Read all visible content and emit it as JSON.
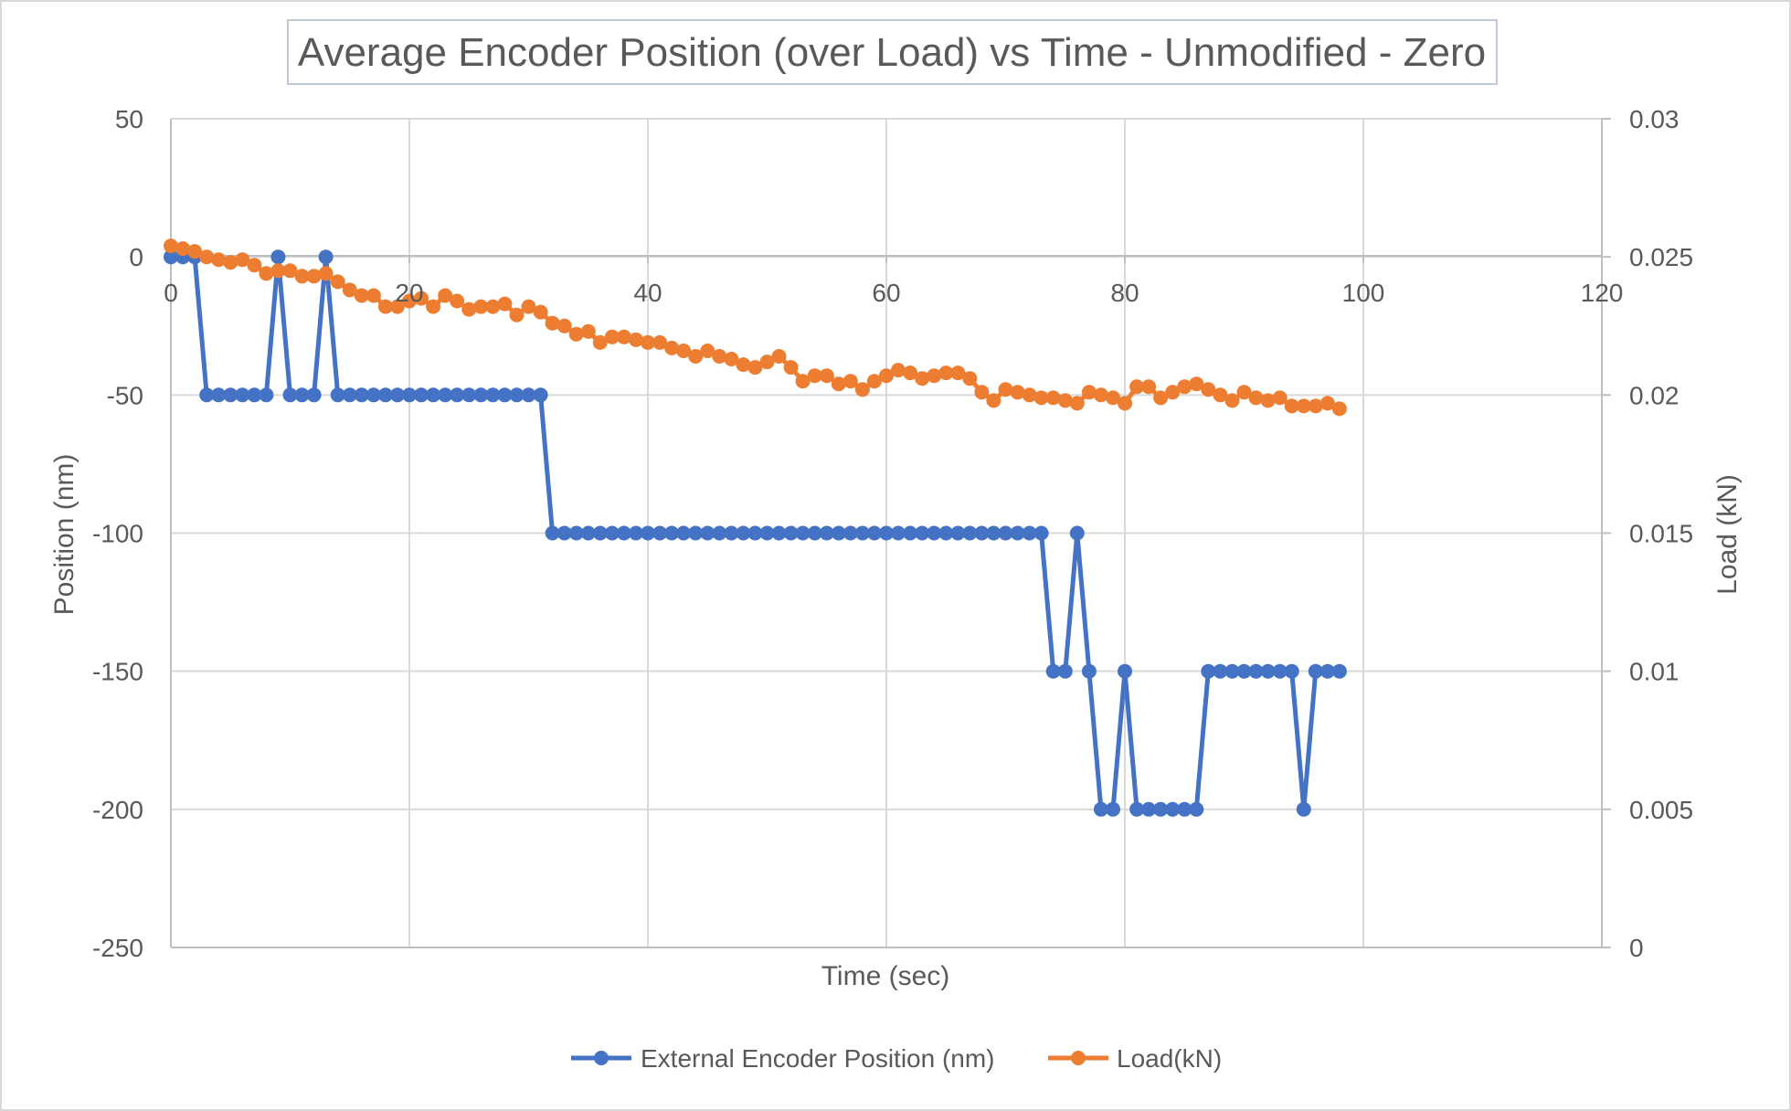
{
  "chart_data": {
    "type": "line",
    "title": "Average Encoder Position (over Load) vs Time - Unmodified - Zero",
    "xlabel": "Time (sec)",
    "ylabel": "Position (nm)",
    "y2label": "Load (kN)",
    "xlim": [
      0,
      120
    ],
    "ylim": [
      -250,
      50
    ],
    "y2lim": [
      0,
      0.03
    ],
    "x_ticks": [
      "0",
      "20",
      "40",
      "60",
      "80",
      "100",
      "120"
    ],
    "y_ticks": [
      "50",
      "0",
      "-50",
      "-100",
      "-150",
      "-200",
      "-250"
    ],
    "y2_ticks": [
      "0.03",
      "0.025",
      "0.02",
      "0.015",
      "0.01",
      "0.005",
      "0"
    ],
    "grid": true,
    "legend_position": "bottom",
    "series": [
      {
        "name": "External Encoder Position (nm)",
        "axis": "left",
        "color": "#4472C4",
        "x": [
          0,
          1,
          2,
          3,
          4,
          5,
          6,
          7,
          8,
          9,
          10,
          11,
          12,
          13,
          14,
          15,
          16,
          17,
          18,
          19,
          20,
          21,
          22,
          23,
          24,
          25,
          26,
          27,
          28,
          29,
          30,
          31,
          32,
          33,
          34,
          35,
          36,
          37,
          38,
          39,
          40,
          41,
          42,
          43,
          44,
          45,
          46,
          47,
          48,
          49,
          50,
          51,
          52,
          53,
          54,
          55,
          56,
          57,
          58,
          59,
          60,
          61,
          62,
          63,
          64,
          65,
          66,
          67,
          68,
          69,
          70,
          71,
          72,
          73,
          74,
          75,
          76,
          77,
          78,
          79,
          80,
          81,
          82,
          83,
          84,
          85,
          86,
          87,
          88,
          89,
          90,
          91,
          92,
          93,
          94,
          95,
          96,
          97,
          98
        ],
        "values": [
          0,
          0,
          0,
          -50,
          -50,
          -50,
          -50,
          -50,
          -50,
          0,
          -50,
          -50,
          -50,
          0,
          -50,
          -50,
          -50,
          -50,
          -50,
          -50,
          -50,
          -50,
          -50,
          -50,
          -50,
          -50,
          -50,
          -50,
          -50,
          -50,
          -50,
          -50,
          -100,
          -100,
          -100,
          -100,
          -100,
          -100,
          -100,
          -100,
          -100,
          -100,
          -100,
          -100,
          -100,
          -100,
          -100,
          -100,
          -100,
          -100,
          -100,
          -100,
          -100,
          -100,
          -100,
          -100,
          -100,
          -100,
          -100,
          -100,
          -100,
          -100,
          -100,
          -100,
          -100,
          -100,
          -100,
          -100,
          -100,
          -100,
          -100,
          -100,
          -100,
          -100,
          -150,
          -150,
          -100,
          -150,
          -200,
          -200,
          -150,
          -200,
          -200,
          -200,
          -200,
          -200,
          -200,
          -150,
          -150,
          -150,
          -150,
          -150,
          -150,
          -150,
          -150,
          -200,
          -150,
          -150,
          -150
        ]
      },
      {
        "name": "Load(kN)",
        "axis": "right",
        "color": "#ED7D31",
        "x": [
          0,
          1,
          2,
          3,
          4,
          5,
          6,
          7,
          8,
          9,
          10,
          11,
          12,
          13,
          14,
          15,
          16,
          17,
          18,
          19,
          20,
          21,
          22,
          23,
          24,
          25,
          26,
          27,
          28,
          29,
          30,
          31,
          32,
          33,
          34,
          35,
          36,
          37,
          38,
          39,
          40,
          41,
          42,
          43,
          44,
          45,
          46,
          47,
          48,
          49,
          50,
          51,
          52,
          53,
          54,
          55,
          56,
          57,
          58,
          59,
          60,
          61,
          62,
          63,
          64,
          65,
          66,
          67,
          68,
          69,
          70,
          71,
          72,
          73,
          74,
          75,
          76,
          77,
          78,
          79,
          80,
          81,
          82,
          83,
          84,
          85,
          86,
          87,
          88,
          89,
          90,
          91,
          92,
          93,
          94,
          95,
          96,
          97,
          98
        ],
        "values": [
          0.0254,
          0.0253,
          0.0252,
          0.025,
          0.0249,
          0.0248,
          0.0249,
          0.0247,
          0.0244,
          0.0245,
          0.0245,
          0.0243,
          0.0243,
          0.0244,
          0.0241,
          0.0238,
          0.0236,
          0.0236,
          0.0232,
          0.0232,
          0.0234,
          0.0235,
          0.0232,
          0.0236,
          0.0234,
          0.0231,
          0.0232,
          0.0232,
          0.0233,
          0.0229,
          0.0232,
          0.023,
          0.0226,
          0.0225,
          0.0222,
          0.0223,
          0.0219,
          0.0221,
          0.0221,
          0.022,
          0.0219,
          0.0219,
          0.0217,
          0.0216,
          0.0214,
          0.0216,
          0.0214,
          0.0213,
          0.0211,
          0.021,
          0.0212,
          0.0214,
          0.021,
          0.0205,
          0.0207,
          0.0207,
          0.0204,
          0.0205,
          0.0202,
          0.0205,
          0.0207,
          0.0209,
          0.0208,
          0.0206,
          0.0207,
          0.0208,
          0.0208,
          0.0206,
          0.0201,
          0.0198,
          0.0202,
          0.0201,
          0.02,
          0.0199,
          0.0199,
          0.0198,
          0.0197,
          0.0201,
          0.02,
          0.0199,
          0.0197,
          0.0203,
          0.0203,
          0.0199,
          0.0201,
          0.0203,
          0.0204,
          0.0202,
          0.02,
          0.0198,
          0.0201,
          0.0199,
          0.0198,
          0.0199,
          0.0196,
          0.0196,
          0.0196,
          0.0197,
          0.0195
        ]
      }
    ]
  }
}
